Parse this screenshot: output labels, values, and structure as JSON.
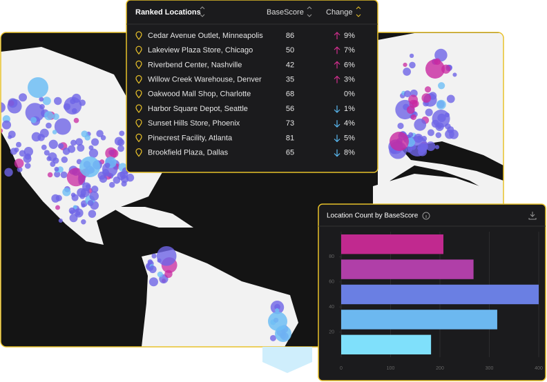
{
  "table": {
    "title": "Ranked Locations",
    "columns": [
      "BaseScore",
      "Change"
    ],
    "rows": [
      {
        "name": "Cedar Avenue Outlet, Minneapolis",
        "score": 86,
        "change": "9%",
        "trend": "up"
      },
      {
        "name": "Lakeview Plaza Store, Chicago",
        "score": 50,
        "change": "7%",
        "trend": "up"
      },
      {
        "name": "Riverbend Center, Nashville",
        "score": 42,
        "change": "6%",
        "trend": "up"
      },
      {
        "name": "Willow Creek Warehouse, Denver",
        "score": 35,
        "change": "3%",
        "trend": "up"
      },
      {
        "name": "Oakwood Mall Shop, Charlotte",
        "score": 68,
        "change": "0%",
        "trend": "flat"
      },
      {
        "name": "Harbor Square Depot, Seattle",
        "score": 56,
        "change": "1%",
        "trend": "down"
      },
      {
        "name": "Sunset Hills Store, Phoenix",
        "score": 73,
        "change": "4%",
        "trend": "down"
      },
      {
        "name": "Pinecrest Facility, Atlanta",
        "score": 81,
        "change": "5%",
        "trend": "down"
      },
      {
        "name": "Brookfield Plaza, Dallas",
        "score": 65,
        "change": "8%",
        "trend": "down"
      }
    ]
  },
  "chart_data": {
    "type": "histogram",
    "orientation": "horizontal",
    "title": "Location Count by BaseScore",
    "bins": [
      0,
      20,
      40,
      60,
      80,
      100
    ],
    "values": [
      182,
      316,
      400,
      268,
      207
    ],
    "colors": [
      "#7fe0fb",
      "#6cb8f0",
      "#6a7fe3",
      "#b03fa8",
      "#c1298f"
    ],
    "xlim": [
      0,
      400
    ],
    "xticks": [
      0,
      100,
      200,
      300,
      400
    ],
    "ylim": [
      0,
      100
    ],
    "yticks": [
      20,
      40,
      60,
      80
    ],
    "grid": true
  }
}
